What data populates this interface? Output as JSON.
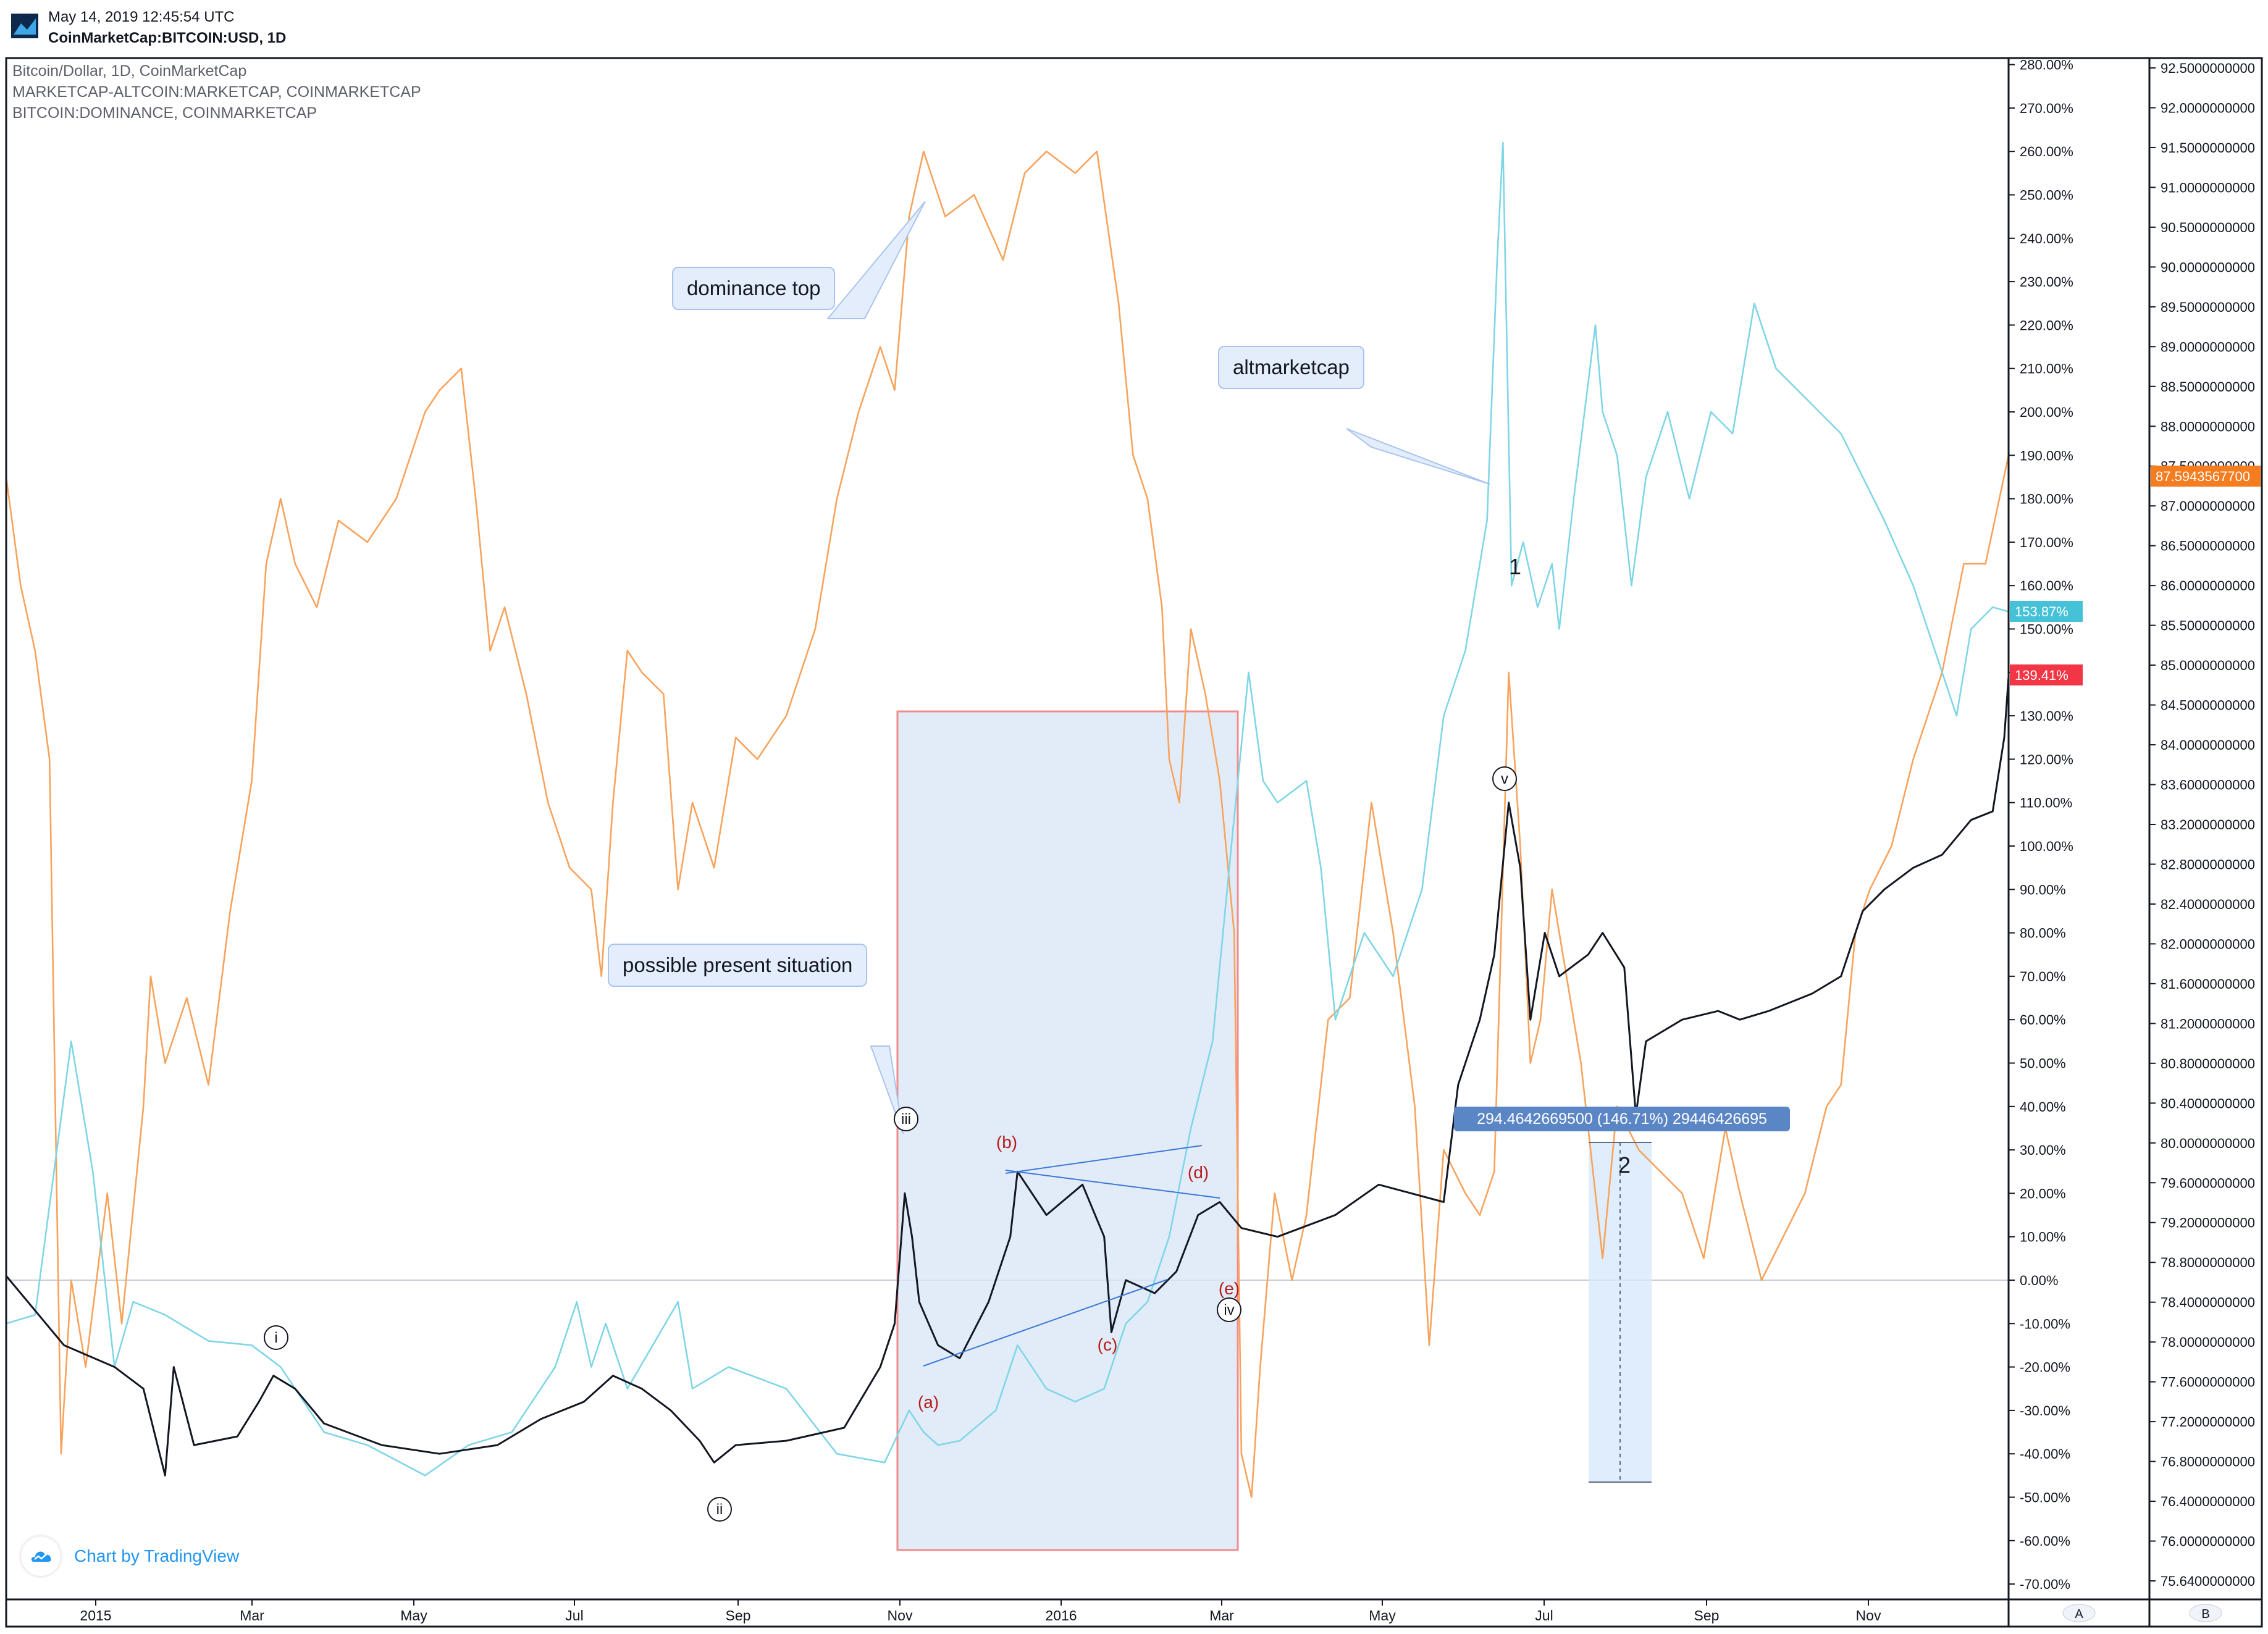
{
  "header": {
    "timestamp": "May 14, 2019 12:45:54 UTC",
    "symbol": "CoinMarketCap:BITCOIN:USD, 1D"
  },
  "legend": [
    "Bitcoin/Dollar, 1D, CoinMarketCap",
    "MARKETCAP-ALTCOIN:MARKETCAP, COINMARKETCAP",
    "BITCOIN:DOMINANCE, COINMARKETCAP"
  ],
  "annotations": {
    "dominance_top": "dominance top",
    "altmarketcap": "altmarketcap",
    "possible_present": "possible present situation",
    "measure": "294.4642669500 (146.71%) 29446426695"
  },
  "wave_labels": [
    "i",
    "ii",
    "iii",
    "iv",
    "v",
    "(a)",
    "(b)",
    "(c)",
    "(d)",
    "(e)",
    "1",
    "2"
  ],
  "credit": "Chart by TradingView",
  "colors": {
    "price": "#131722",
    "altcoin": "#7fd6e6",
    "dominance": "#f8a35c",
    "box_fill": "#dbe7f8",
    "box_stroke": "#f28b8b",
    "price_badge": "#f23645",
    "alt_badge": "#45c1d8",
    "dom_badge": "#f57c1f"
  },
  "chart_data": {
    "type": "line",
    "x_ticks": [
      "2015",
      "Mar",
      "May",
      "Jul",
      "Sep",
      "Nov",
      "2016",
      "Mar",
      "May",
      "Jul",
      "Sep",
      "Nov"
    ],
    "y_left_label": "percent",
    "y_left_ticks": [
      "280.00%",
      "270.00%",
      "260.00%",
      "250.00%",
      "240.00%",
      "230.00%",
      "220.00%",
      "210.00%",
      "200.00%",
      "190.00%",
      "180.00%",
      "170.00%",
      "160.00%",
      "150.00%",
      "140.00%",
      "130.00%",
      "120.00%",
      "110.00%",
      "100.00%",
      "90.00%",
      "80.00%",
      "70.00%",
      "60.00%",
      "50.00%",
      "40.00%",
      "30.00%",
      "20.00%",
      "10.00%",
      "0.00%",
      "-10.00%",
      "-20.00%",
      "-30.00%",
      "-40.00%",
      "-50.00%",
      "-60.00%",
      "-70.00%"
    ],
    "y_right_ticks": [
      "92.5000000000",
      "92.0000000000",
      "91.5000000000",
      "91.0000000000",
      "90.5000000000",
      "90.0000000000",
      "89.5000000000",
      "89.0000000000",
      "88.5000000000",
      "88.0000000000",
      "87.5000000000",
      "87.0000000000",
      "86.5000000000",
      "86.0000000000",
      "85.5000000000",
      "85.0000000000",
      "84.5000000000",
      "84.0000000000",
      "83.6000000000",
      "83.2000000000",
      "82.8000000000",
      "82.4000000000",
      "82.0000000000",
      "81.6000000000",
      "81.2000000000",
      "80.8000000000",
      "80.4000000000",
      "80.0000000000",
      "79.6000000000",
      "79.2000000000",
      "78.8000000000",
      "78.4000000000",
      "78.0000000000",
      "77.6000000000",
      "77.2000000000",
      "76.8000000000",
      "76.4000000000",
      "76.0000000000",
      "75.6400000000"
    ],
    "ylim_left": [
      -70,
      280
    ],
    "badges": {
      "price": "139.41%",
      "altcoin": "153.87%",
      "dominance": "87.5943567700"
    },
    "axis_buttons": [
      "A",
      "B"
    ],
    "series": [
      {
        "name": "Bitcoin/Dollar, 1D, CoinMarketCap",
        "points": [
          [
            0,
            1
          ],
          [
            40,
            -15
          ],
          [
            75,
            -20
          ],
          [
            95,
            -25
          ],
          [
            110,
            -45
          ],
          [
            116,
            -20
          ],
          [
            130,
            -38
          ],
          [
            160,
            -36
          ],
          [
            175,
            -28
          ],
          [
            185,
            -22
          ],
          [
            200,
            -25
          ],
          [
            220,
            -33
          ],
          [
            260,
            -38
          ],
          [
            300,
            -40
          ],
          [
            340,
            -38
          ],
          [
            370,
            -32
          ],
          [
            400,
            -28
          ],
          [
            420,
            -22
          ],
          [
            440,
            -25
          ],
          [
            460,
            -30
          ],
          [
            480,
            -37
          ],
          [
            490,
            -42
          ],
          [
            505,
            -38
          ],
          [
            540,
            -37
          ],
          [
            580,
            -34
          ],
          [
            605,
            -20
          ],
          [
            615,
            -10
          ],
          [
            622,
            20
          ],
          [
            627,
            10
          ],
          [
            632,
            -5
          ],
          [
            645,
            -15
          ],
          [
            660,
            -18
          ],
          [
            680,
            -5
          ],
          [
            695,
            10
          ],
          [
            700,
            25
          ],
          [
            720,
            15
          ],
          [
            745,
            22
          ],
          [
            760,
            10
          ],
          [
            765,
            -12
          ],
          [
            775,
            0
          ],
          [
            795,
            -3
          ],
          [
            810,
            2
          ],
          [
            825,
            15
          ],
          [
            840,
            18
          ],
          [
            855,
            12
          ],
          [
            880,
            10
          ],
          [
            920,
            15
          ],
          [
            950,
            22
          ],
          [
            995,
            18
          ],
          [
            1005,
            45
          ],
          [
            1020,
            60
          ],
          [
            1030,
            75
          ],
          [
            1040,
            110
          ],
          [
            1048,
            95
          ],
          [
            1055,
            60
          ],
          [
            1065,
            80
          ],
          [
            1075,
            70
          ],
          [
            1095,
            75
          ],
          [
            1105,
            80
          ],
          [
            1120,
            72
          ],
          [
            1128,
            38
          ],
          [
            1135,
            55
          ],
          [
            1160,
            60
          ],
          [
            1185,
            62
          ],
          [
            1200,
            60
          ],
          [
            1220,
            62
          ],
          [
            1250,
            66
          ],
          [
            1270,
            70
          ],
          [
            1285,
            85
          ],
          [
            1300,
            90
          ],
          [
            1320,
            95
          ],
          [
            1340,
            98
          ],
          [
            1360,
            106
          ],
          [
            1375,
            108
          ],
          [
            1383,
            125
          ],
          [
            1386,
            139
          ]
        ]
      },
      {
        "name": "MARKETCAP-ALTCOIN:MARKETCAP, COINMARKETCAP",
        "points": [
          [
            0,
            -10
          ],
          [
            20,
            -8
          ],
          [
            45,
            55
          ],
          [
            60,
            25
          ],
          [
            75,
            -20
          ],
          [
            88,
            -5
          ],
          [
            110,
            -8
          ],
          [
            140,
            -14
          ],
          [
            170,
            -15
          ],
          [
            190,
            -20
          ],
          [
            220,
            -35
          ],
          [
            250,
            -38
          ],
          [
            290,
            -45
          ],
          [
            320,
            -38
          ],
          [
            350,
            -35
          ],
          [
            380,
            -20
          ],
          [
            395,
            -5
          ],
          [
            405,
            -20
          ],
          [
            415,
            -10
          ],
          [
            430,
            -25
          ],
          [
            465,
            -5
          ],
          [
            475,
            -25
          ],
          [
            500,
            -20
          ],
          [
            540,
            -25
          ],
          [
            575,
            -40
          ],
          [
            608,
            -42
          ],
          [
            625,
            -30
          ],
          [
            635,
            -35
          ],
          [
            645,
            -38
          ],
          [
            660,
            -37
          ],
          [
            685,
            -30
          ],
          [
            700,
            -15
          ],
          [
            720,
            -25
          ],
          [
            740,
            -28
          ],
          [
            760,
            -25
          ],
          [
            775,
            -10
          ],
          [
            790,
            -5
          ],
          [
            805,
            10
          ],
          [
            820,
            35
          ],
          [
            835,
            55
          ],
          [
            848,
            100
          ],
          [
            860,
            140
          ],
          [
            870,
            115
          ],
          [
            880,
            110
          ],
          [
            900,
            115
          ],
          [
            910,
            95
          ],
          [
            920,
            60
          ],
          [
            940,
            80
          ],
          [
            960,
            70
          ],
          [
            980,
            90
          ],
          [
            995,
            130
          ],
          [
            1010,
            145
          ],
          [
            1025,
            175
          ],
          [
            1032,
            235
          ],
          [
            1036,
            262
          ],
          [
            1042,
            160
          ],
          [
            1050,
            170
          ],
          [
            1060,
            155
          ],
          [
            1070,
            165
          ],
          [
            1075,
            150
          ],
          [
            1085,
            180
          ],
          [
            1100,
            220
          ],
          [
            1105,
            200
          ],
          [
            1115,
            190
          ],
          [
            1125,
            160
          ],
          [
            1135,
            185
          ],
          [
            1150,
            200
          ],
          [
            1165,
            180
          ],
          [
            1180,
            200
          ],
          [
            1195,
            195
          ],
          [
            1210,
            225
          ],
          [
            1225,
            210
          ],
          [
            1240,
            205
          ],
          [
            1255,
            200
          ],
          [
            1270,
            195
          ],
          [
            1285,
            185
          ],
          [
            1300,
            175
          ],
          [
            1320,
            160
          ],
          [
            1340,
            140
          ],
          [
            1350,
            130
          ],
          [
            1360,
            150
          ],
          [
            1375,
            155
          ],
          [
            1386,
            154
          ]
        ]
      },
      {
        "name": "BITCOIN:DOMINANCE, COINMARKETCAP",
        "points": [
          [
            0,
            185
          ],
          [
            10,
            160
          ],
          [
            20,
            145
          ],
          [
            30,
            120
          ],
          [
            38,
            -40
          ],
          [
            45,
            0
          ],
          [
            55,
            -20
          ],
          [
            70,
            20
          ],
          [
            80,
            -10
          ],
          [
            95,
            40
          ],
          [
            100,
            70
          ],
          [
            110,
            50
          ],
          [
            125,
            65
          ],
          [
            140,
            45
          ],
          [
            155,
            85
          ],
          [
            170,
            115
          ],
          [
            180,
            165
          ],
          [
            190,
            180
          ],
          [
            200,
            165
          ],
          [
            215,
            155
          ],
          [
            230,
            175
          ],
          [
            250,
            170
          ],
          [
            270,
            180
          ],
          [
            290,
            200
          ],
          [
            300,
            205
          ],
          [
            315,
            210
          ],
          [
            325,
            180
          ],
          [
            335,
            145
          ],
          [
            345,
            155
          ],
          [
            360,
            135
          ],
          [
            375,
            110
          ],
          [
            390,
            95
          ],
          [
            405,
            90
          ],
          [
            412,
            70
          ],
          [
            420,
            110
          ],
          [
            430,
            145
          ],
          [
            440,
            140
          ],
          [
            455,
            135
          ],
          [
            465,
            90
          ],
          [
            475,
            110
          ],
          [
            490,
            95
          ],
          [
            505,
            125
          ],
          [
            520,
            120
          ],
          [
            540,
            130
          ],
          [
            560,
            150
          ],
          [
            575,
            180
          ],
          [
            590,
            200
          ],
          [
            605,
            215
          ],
          [
            615,
            205
          ],
          [
            625,
            245
          ],
          [
            635,
            260
          ],
          [
            650,
            245
          ],
          [
            670,
            250
          ],
          [
            690,
            235
          ],
          [
            705,
            255
          ],
          [
            720,
            260
          ],
          [
            740,
            255
          ],
          [
            755,
            260
          ],
          [
            770,
            225
          ],
          [
            780,
            190
          ],
          [
            790,
            180
          ],
          [
            800,
            155
          ],
          [
            805,
            120
          ],
          [
            812,
            110
          ],
          [
            820,
            150
          ],
          [
            830,
            135
          ],
          [
            840,
            115
          ],
          [
            850,
            80
          ],
          [
            855,
            -40
          ],
          [
            862,
            -50
          ],
          [
            868,
            -20
          ],
          [
            878,
            20
          ],
          [
            890,
            0
          ],
          [
            900,
            15
          ],
          [
            915,
            60
          ],
          [
            930,
            65
          ],
          [
            945,
            110
          ],
          [
            960,
            80
          ],
          [
            975,
            40
          ],
          [
            985,
            -15
          ],
          [
            995,
            30
          ],
          [
            1010,
            20
          ],
          [
            1020,
            15
          ],
          [
            1030,
            25
          ],
          [
            1040,
            140
          ],
          [
            1048,
            100
          ],
          [
            1055,
            50
          ],
          [
            1062,
            60
          ],
          [
            1070,
            90
          ],
          [
            1080,
            70
          ],
          [
            1090,
            50
          ],
          [
            1100,
            20
          ],
          [
            1105,
            5
          ],
          [
            1115,
            40
          ],
          [
            1130,
            30
          ],
          [
            1145,
            25
          ],
          [
            1160,
            20
          ],
          [
            1175,
            5
          ],
          [
            1190,
            35
          ],
          [
            1200,
            20
          ],
          [
            1215,
            0
          ],
          [
            1230,
            10
          ],
          [
            1245,
            20
          ],
          [
            1260,
            40
          ],
          [
            1270,
            45
          ],
          [
            1280,
            80
          ],
          [
            1290,
            90
          ],
          [
            1305,
            100
          ],
          [
            1320,
            120
          ],
          [
            1340,
            140
          ],
          [
            1355,
            165
          ],
          [
            1370,
            165
          ],
          [
            1386,
            190
          ]
        ]
      }
    ]
  }
}
